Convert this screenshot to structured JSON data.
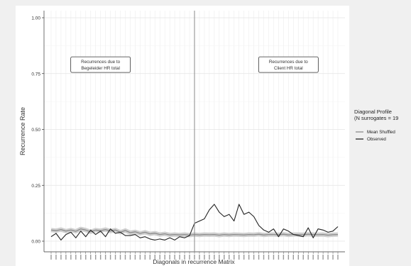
{
  "chart_data": {
    "type": "line",
    "title": "",
    "xlabel": "Diagonals in recurrence Matrix",
    "ylabel": "Recurrence Rate",
    "ylim": [
      0,
      1
    ],
    "y_ticks": [
      "0.00",
      "0.25",
      "0.50",
      "0.75",
      "1.00"
    ],
    "x_range": [
      -29,
      29
    ],
    "x_tick_labels_legible": false,
    "grid": true,
    "center_line_x": 0,
    "annotations": [
      {
        "text_line1": "Recurrences due to",
        "text_line2": "Begeleider HR total",
        "x": -19,
        "y": 0.79
      },
      {
        "text_line1": "Recurrences due to",
        "text_line2": "Client HR total",
        "x": 19,
        "y": 0.79
      }
    ],
    "legend": {
      "title_line1": "Diagonal Profile",
      "title_line2": "(N surrogates = 19",
      "placement": "right"
    },
    "series": [
      {
        "name": "Mean Shuffled",
        "color": "#8c8c8c",
        "band": true,
        "x": [
          -29,
          -28,
          -27,
          -26,
          -25,
          -24,
          -23,
          -22,
          -21,
          -20,
          -19,
          -18,
          -17,
          -16,
          -15,
          -14,
          -13,
          -12,
          -11,
          -10,
          -9,
          -8,
          -7,
          -6,
          -5,
          -4,
          -3,
          -2,
          -1,
          0,
          1,
          2,
          3,
          4,
          5,
          6,
          7,
          8,
          9,
          10,
          11,
          12,
          13,
          14,
          15,
          16,
          17,
          18,
          19,
          20,
          21,
          22,
          23,
          24,
          25,
          26,
          27,
          28,
          29
        ],
        "values": [
          0.05,
          0.047,
          0.052,
          0.045,
          0.05,
          0.044,
          0.055,
          0.05,
          0.042,
          0.05,
          0.047,
          0.052,
          0.045,
          0.05,
          0.04,
          0.048,
          0.038,
          0.042,
          0.035,
          0.04,
          0.033,
          0.036,
          0.03,
          0.033,
          0.028,
          0.03,
          0.028,
          0.03,
          0.027,
          0.03,
          0.028,
          0.03,
          0.029,
          0.03,
          0.027,
          0.03,
          0.028,
          0.03,
          0.029,
          0.028,
          0.03,
          0.029,
          0.031,
          0.028,
          0.03,
          0.03,
          0.029,
          0.031,
          0.028,
          0.03,
          0.03,
          0.029,
          0.031,
          0.03,
          0.029,
          0.03,
          0.027,
          0.029,
          0.03
        ]
      },
      {
        "name": "Observed",
        "color": "#222222",
        "band": false,
        "x": [
          -29,
          -28,
          -27,
          -26,
          -25,
          -24,
          -23,
          -22,
          -21,
          -20,
          -19,
          -18,
          -17,
          -16,
          -15,
          -14,
          -13,
          -12,
          -11,
          -10,
          -9,
          -8,
          -7,
          -6,
          -5,
          -4,
          -3,
          -2,
          -1,
          0,
          1,
          2,
          3,
          4,
          5,
          6,
          7,
          8,
          9,
          10,
          11,
          12,
          13,
          14,
          15,
          16,
          17,
          18,
          19,
          20,
          21,
          22,
          23,
          24,
          25,
          26,
          27,
          28,
          29
        ],
        "values": [
          0.02,
          0.035,
          0.005,
          0.03,
          0.04,
          0.015,
          0.045,
          0.02,
          0.05,
          0.03,
          0.045,
          0.02,
          0.055,
          0.035,
          0.04,
          0.025,
          0.025,
          0.03,
          0.015,
          0.02,
          0.01,
          0.005,
          0.01,
          0.005,
          0.015,
          0.005,
          0.02,
          0.015,
          0.025,
          0.08,
          0.09,
          0.1,
          0.14,
          0.165,
          0.13,
          0.11,
          0.12,
          0.09,
          0.165,
          0.12,
          0.13,
          0.11,
          0.07,
          0.05,
          0.04,
          0.055,
          0.02,
          0.055,
          0.045,
          0.03,
          0.025,
          0.02,
          0.06,
          0.015,
          0.055,
          0.05,
          0.04,
          0.045,
          0.065
        ]
      }
    ]
  }
}
